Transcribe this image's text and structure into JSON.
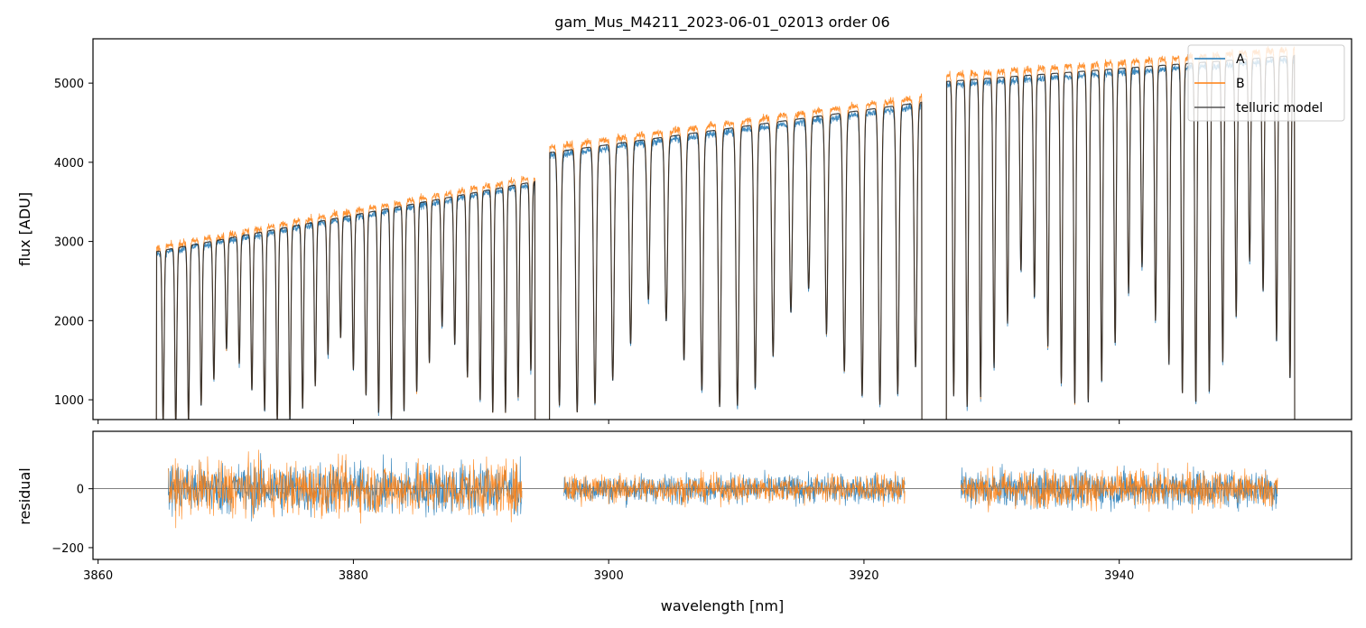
{
  "chart_data": [
    {
      "panel": "top",
      "type": "line",
      "title": "gam_Mus_M4211_2023-06-01_02013  order 06",
      "xlabel": "",
      "ylabel": "flux [ADU]",
      "xlim": [
        3859.6,
        3958.2
      ],
      "ylim": [
        750,
        5560
      ],
      "yticks": [
        1000,
        2000,
        3000,
        4000,
        5000
      ],
      "xticks": [
        3860,
        3880,
        3900,
        3920,
        3940
      ],
      "xtick_labels_visible": false,
      "grid": false,
      "legend": {
        "placement": "top-right",
        "entries": [
          "A",
          "B",
          "telluric model"
        ]
      },
      "segments": [
        {
          "x": [
            3864.5,
            3894.3
          ],
          "continuum": [
            2870,
            3760
          ],
          "n_lines": 30,
          "line_depth": 0.78
        },
        {
          "x": [
            3895.3,
            3924.6
          ],
          "continuum": [
            4120,
            4760
          ],
          "n_lines": 21,
          "line_depth": 0.8
        },
        {
          "x": [
            3926.4,
            3953.8
          ],
          "continuum": [
            5020,
            5350
          ],
          "n_lines": 26,
          "line_depth": 0.82
        }
      ],
      "series": [
        {
          "name": "A",
          "color": "#1f77b4"
        },
        {
          "name": "B",
          "color": "#ff7f0e"
        },
        {
          "name": "telluric model",
          "color": "#222222"
        }
      ]
    },
    {
      "panel": "bottom",
      "type": "line",
      "title": "",
      "xlabel": "wavelength [nm]",
      "ylabel": "residual",
      "xlim": [
        3859.6,
        3958.2
      ],
      "ylim": [
        -240,
        195
      ],
      "yticks": [
        -200,
        0
      ],
      "xticks": [
        3860,
        3880,
        3900,
        3920,
        3940
      ],
      "grid": false,
      "zero_line": true,
      "segments": [
        {
          "x": [
            3865.5,
            3893.2
          ],
          "rms": 85
        },
        {
          "x": [
            3896.5,
            3923.2
          ],
          "rms": 45
        },
        {
          "x": [
            3927.6,
            3952.4
          ],
          "rms": 60
        }
      ],
      "series": [
        {
          "name": "A",
          "color": "#1f77b4"
        },
        {
          "name": "B",
          "color": "#ff7f0e"
        }
      ]
    }
  ]
}
